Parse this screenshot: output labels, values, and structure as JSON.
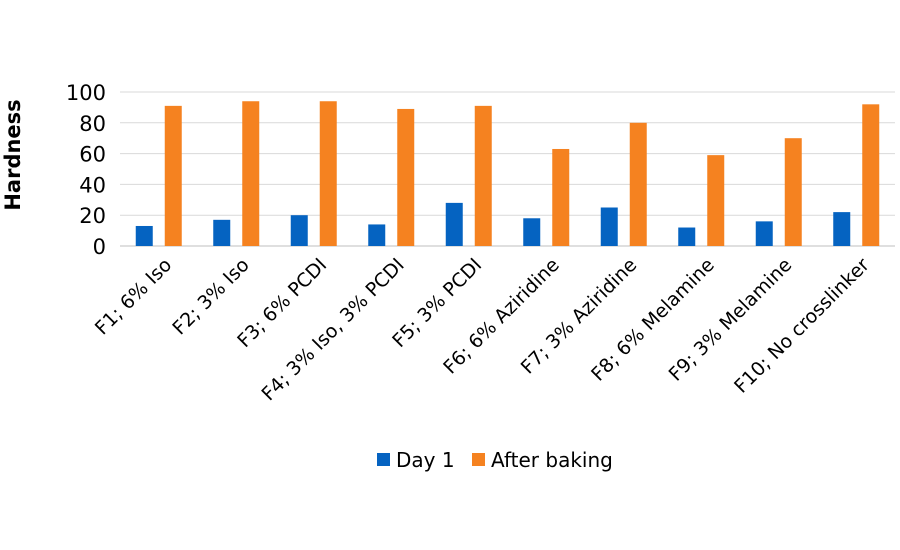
{
  "chart_data": {
    "type": "bar",
    "title": "",
    "xlabel": "",
    "ylabel": "Hardness",
    "ylim": [
      0,
      100
    ],
    "yticks": [
      0,
      20,
      40,
      60,
      80,
      100
    ],
    "grid": true,
    "legend_position": "bottom",
    "categories": [
      "F1; 6% Iso",
      "F2; 3% Iso",
      "F3; 6% PCDI",
      "F4; 3% Iso, 3% PCDI",
      "F5; 3% PCDI",
      "F6; 6% Aziridine",
      "F7; 3% Aziridine",
      "F8; 6% Melamine",
      "F9; 3% Melamine",
      "F10; No crosslinker"
    ],
    "series": [
      {
        "name": "Day 1",
        "color": "#0563C1",
        "values": [
          13,
          17,
          20,
          14,
          28,
          18,
          25,
          12,
          16,
          22
        ]
      },
      {
        "name": "After baking",
        "color": "#F58220",
        "values": [
          91,
          94,
          94,
          89,
          91,
          63,
          80,
          59,
          70,
          92
        ]
      }
    ]
  }
}
